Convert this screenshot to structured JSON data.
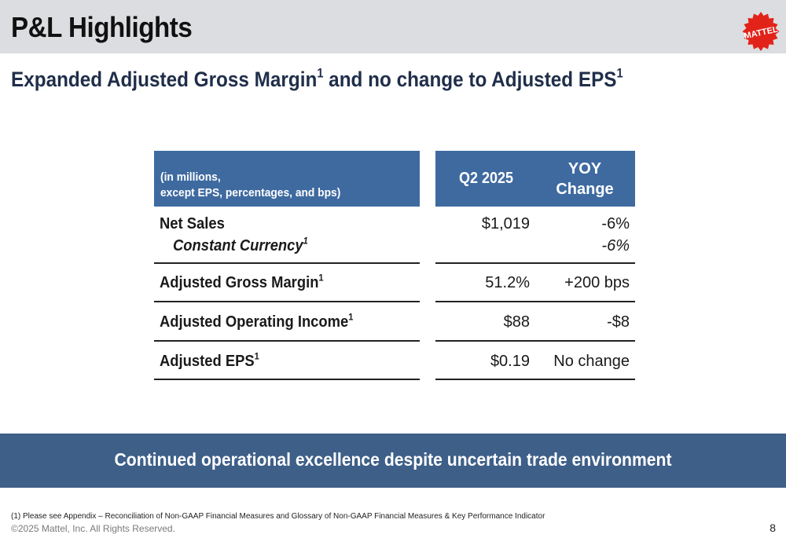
{
  "header": {
    "title": "P&L Highlights",
    "logo_text": "MATTEL"
  },
  "subtitle": {
    "part1": "Expanded Adjusted Gross Margin",
    "sup1": "1",
    "part2": " and no change to Adjusted EPS",
    "sup2": "1"
  },
  "table": {
    "header_note_line1": "(in millions,",
    "header_note_line2": "except EPS, percentages, and bps)",
    "col_q2": "Q2 2025",
    "col_yoy_line1": "YOY",
    "col_yoy_line2": "Change",
    "rows": [
      {
        "label": "Net Sales",
        "sup": "",
        "value": "$1,019",
        "change": "-6%"
      },
      {
        "label": "Constant Currency",
        "sup": "1",
        "value": "",
        "change": "-6%"
      },
      {
        "label": "Adjusted Gross Margin",
        "sup": "1",
        "value": "51.2%",
        "change": "+200 bps"
      },
      {
        "label": "Adjusted Operating Income",
        "sup": "1",
        "value": "$88",
        "change": "-$8"
      },
      {
        "label": "Adjusted EPS",
        "sup": "1",
        "value": "$0.19",
        "change": "No change"
      }
    ]
  },
  "banner": {
    "text": "Continued operational excellence despite uncertain trade environment"
  },
  "footer": {
    "footnote": "(1)    Please see Appendix – Reconciliation of Non-GAAP Financial Measures and Glossary of Non-GAAP Financial Measures & Key Performance Indicator",
    "copyright": "©2025 Mattel, Inc.  All Rights Reserved.",
    "page_number": "8"
  },
  "colors": {
    "header_band": "#dcdde0",
    "table_header": "#3e6aa0",
    "banner": "#3e5f88",
    "logo_red": "#e2231a"
  }
}
